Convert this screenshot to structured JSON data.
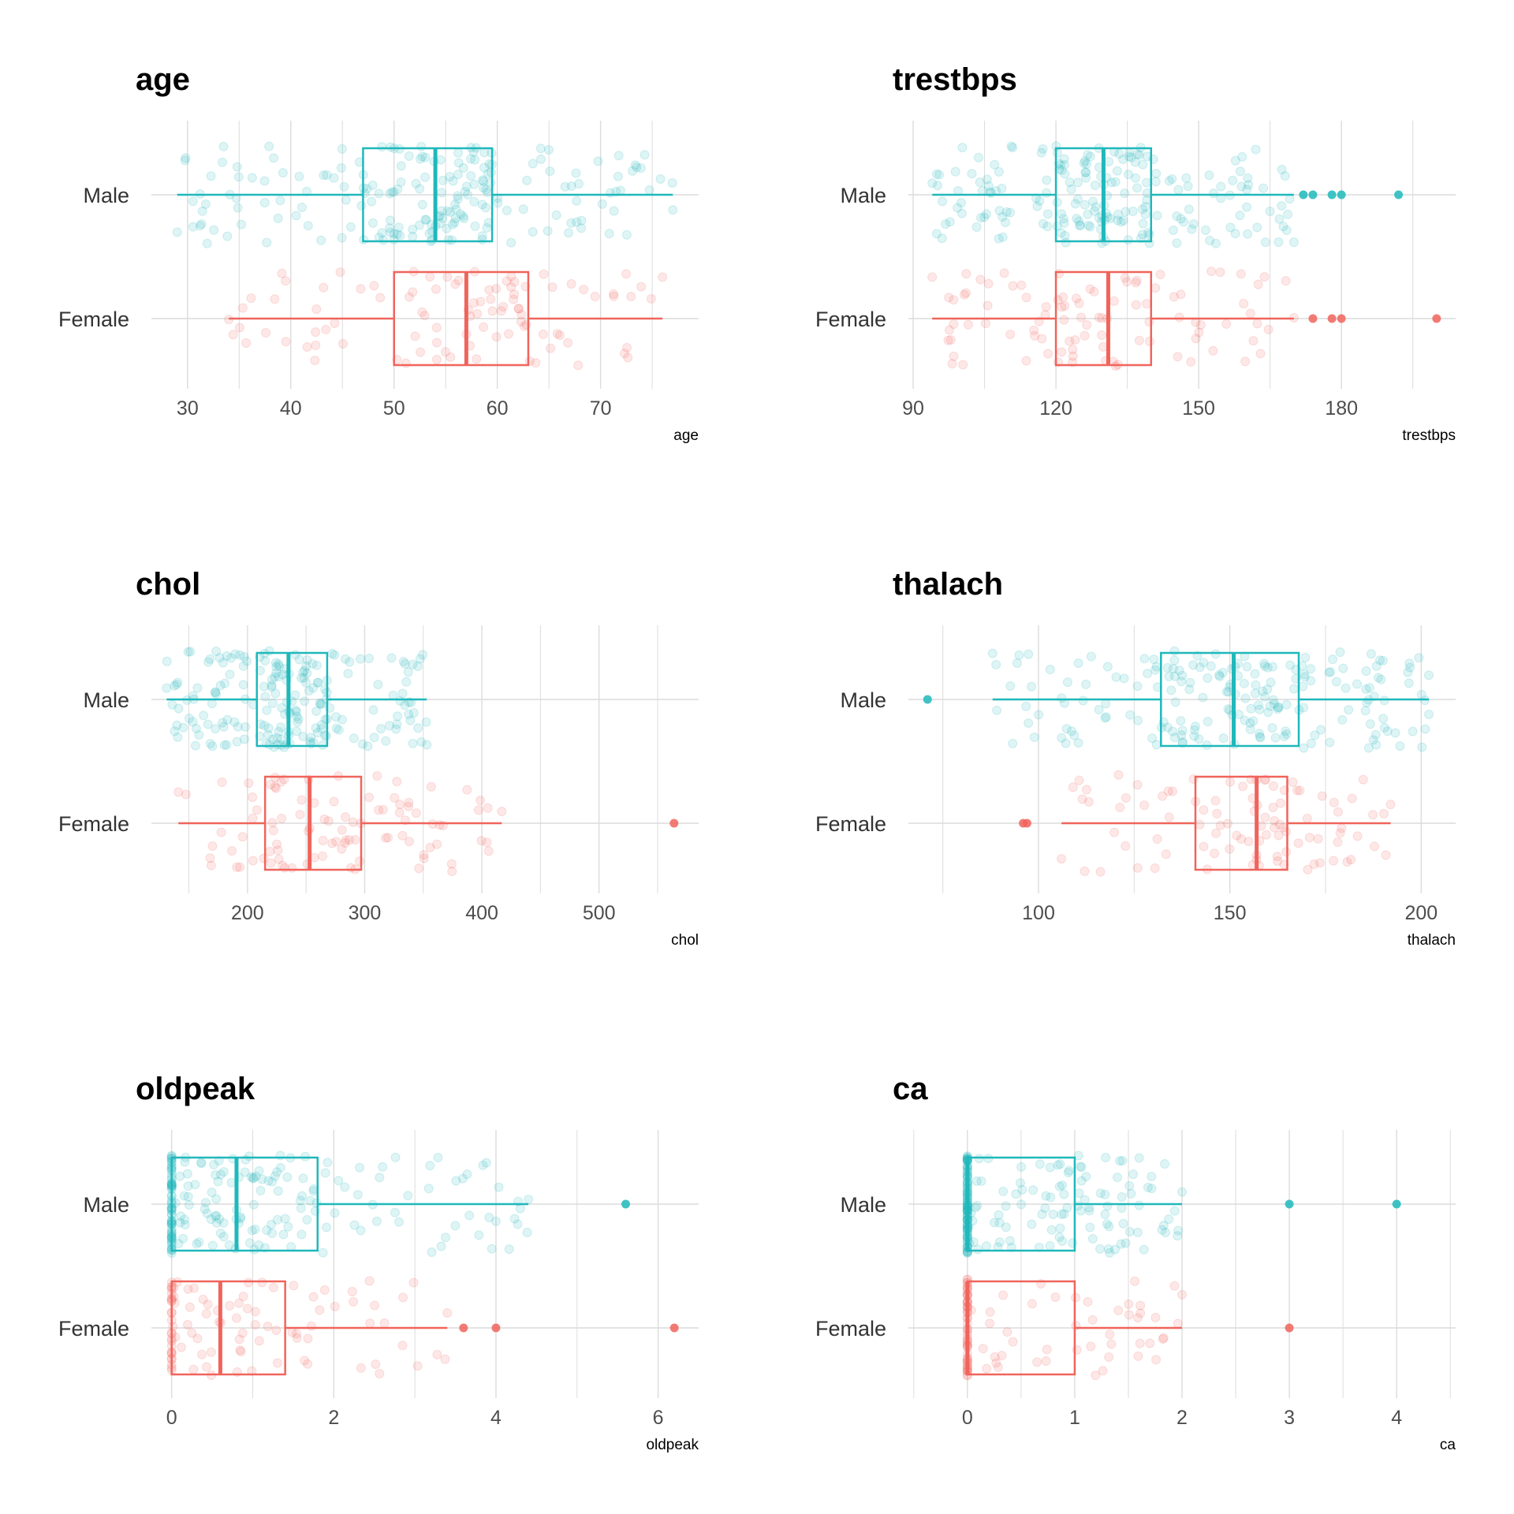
{
  "colors": {
    "male": "#1fb8bb",
    "female": "#f0645c",
    "grid": "#dcdcdc"
  },
  "chart_data": [
    {
      "type": "boxplot",
      "title": "age",
      "xlabel": "age",
      "categories": [
        "Male",
        "Female"
      ],
      "xlim": [
        26.5,
        79.5
      ],
      "major_ticks": [
        30,
        40,
        50,
        60,
        70
      ],
      "minor_ticks": [
        35,
        45,
        55,
        65,
        75
      ],
      "boxes": [
        {
          "name": "Male",
          "whisker_low": 29,
          "q1": 47,
          "median": 54,
          "q3": 59.5,
          "whisker_high": 77,
          "outliers": [],
          "n": 200
        },
        {
          "name": "Female",
          "whisker_low": 34,
          "q1": 50,
          "median": 57,
          "q3": 63,
          "whisker_high": 76,
          "outliers": [],
          "n": 95
        }
      ]
    },
    {
      "type": "boxplot",
      "title": "trestbps",
      "xlabel": "trestbps",
      "categories": [
        "Male",
        "Female"
      ],
      "xlim": [
        89,
        204
      ],
      "major_ticks": [
        90,
        120,
        150,
        180
      ],
      "minor_ticks": [
        105,
        135,
        165,
        195
      ],
      "boxes": [
        {
          "name": "Male",
          "whisker_low": 94,
          "q1": 120,
          "median": 130,
          "q3": 140,
          "whisker_high": 170,
          "outliers": [
            172,
            174,
            178,
            180,
            192
          ],
          "n": 200
        },
        {
          "name": "Female",
          "whisker_low": 94,
          "q1": 120,
          "median": 131,
          "q3": 140,
          "whisker_high": 170,
          "outliers": [
            174,
            178,
            180,
            200
          ],
          "n": 95
        }
      ]
    },
    {
      "type": "boxplot",
      "title": "chol",
      "xlabel": "chol",
      "categories": [
        "Male",
        "Female"
      ],
      "xlim": [
        118,
        585
      ],
      "major_ticks": [
        200,
        300,
        400,
        500
      ],
      "minor_ticks": [
        150,
        250,
        350,
        450,
        550
      ],
      "boxes": [
        {
          "name": "Male",
          "whisker_low": 131,
          "q1": 208,
          "median": 235,
          "q3": 268,
          "whisker_high": 353,
          "outliers": [],
          "n": 200
        },
        {
          "name": "Female",
          "whisker_low": 141,
          "q1": 215,
          "median": 253,
          "q3": 297,
          "whisker_high": 417,
          "outliers": [
            564
          ],
          "n": 95
        }
      ]
    },
    {
      "type": "boxplot",
      "title": "thalach",
      "xlabel": "thalach",
      "categories": [
        "Male",
        "Female"
      ],
      "xlim": [
        66,
        209
      ],
      "major_ticks": [
        100,
        150,
        200
      ],
      "minor_ticks": [
        75,
        125,
        175
      ],
      "boxes": [
        {
          "name": "Male",
          "whisker_low": 88,
          "q1": 132,
          "median": 151,
          "q3": 168,
          "whisker_high": 202,
          "outliers": [
            71
          ],
          "n": 200
        },
        {
          "name": "Female",
          "whisker_low": 106,
          "q1": 141,
          "median": 157,
          "q3": 165,
          "whisker_high": 192,
          "outliers": [
            96,
            97
          ],
          "n": 95
        }
      ]
    },
    {
      "type": "boxplot",
      "title": "oldpeak",
      "xlabel": "oldpeak",
      "categories": [
        "Male",
        "Female"
      ],
      "xlim": [
        -0.25,
        6.5
      ],
      "major_ticks": [
        0,
        2,
        4,
        6
      ],
      "minor_ticks": [
        1,
        3,
        5
      ],
      "boxes": [
        {
          "name": "Male",
          "whisker_low": 0,
          "q1": 0,
          "median": 0.8,
          "q3": 1.8,
          "whisker_high": 4.4,
          "outliers": [
            5.6
          ],
          "n": 200
        },
        {
          "name": "Female",
          "whisker_low": 0,
          "q1": 0,
          "median": 0.6,
          "q3": 1.4,
          "whisker_high": 3.4,
          "outliers": [
            3.6,
            4.0,
            6.2
          ],
          "n": 95
        }
      ]
    },
    {
      "type": "boxplot",
      "title": "ca",
      "xlabel": "ca",
      "categories": [
        "Male",
        "Female"
      ],
      "xlim": [
        -0.55,
        4.55
      ],
      "major_ticks": [
        0,
        1,
        2,
        3,
        4
      ],
      "minor_ticks": [
        -0.5,
        0.5,
        1.5,
        2.5,
        3.5,
        4.5
      ],
      "boxes": [
        {
          "name": "Male",
          "whisker_low": 0,
          "q1": 0,
          "median": 0,
          "q3": 1,
          "whisker_high": 2,
          "outliers": [
            3,
            4
          ],
          "n": 200
        },
        {
          "name": "Female",
          "whisker_low": 0,
          "q1": 0,
          "median": 0,
          "q3": 1,
          "whisker_high": 2,
          "outliers": [
            3
          ],
          "n": 95
        }
      ]
    }
  ]
}
